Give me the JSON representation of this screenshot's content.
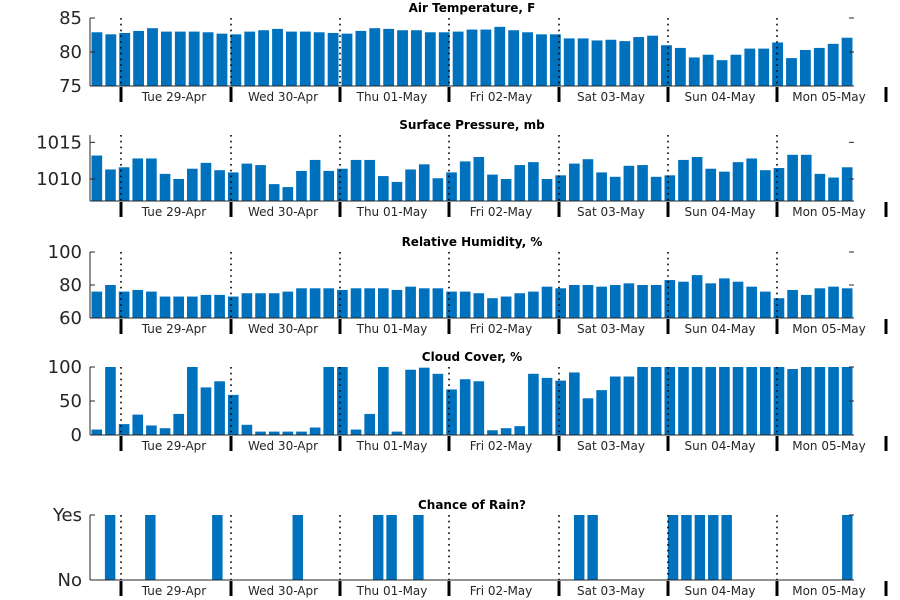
{
  "chart_data": [
    {
      "type": "bar",
      "title": "Air Temperature, F",
      "xlabel": "",
      "ylabel": "",
      "ylim": [
        75,
        85
      ],
      "yticks": [
        {
          "value": 75,
          "label": "75"
        },
        {
          "value": 80,
          "label": "80"
        },
        {
          "value": 85,
          "label": "85"
        }
      ],
      "day_labels": [
        "Tue 29-Apr",
        "Wed 30-Apr",
        "Thu 01-May",
        "Fri 02-May",
        "Sat 03-May",
        "Sun 04-May",
        "Mon 05-May"
      ],
      "values": [
        82.9,
        82.6,
        82.8,
        83.1,
        83.5,
        83.0,
        83.0,
        83.0,
        82.9,
        82.7,
        82.6,
        83.0,
        83.2,
        83.4,
        83.0,
        83.0,
        82.9,
        82.8,
        82.7,
        83.1,
        83.5,
        83.4,
        83.2,
        83.2,
        82.9,
        82.9,
        83.0,
        83.3,
        83.3,
        83.7,
        83.2,
        82.9,
        82.6,
        82.6,
        82.0,
        82.0,
        81.7,
        81.8,
        81.6,
        82.2,
        82.4,
        81.0,
        80.6,
        79.2,
        79.6,
        78.8,
        79.6,
        80.5,
        80.5,
        81.4,
        79.1,
        80.3,
        80.6,
        81.2,
        82.1
      ]
    },
    {
      "type": "bar",
      "title": "Surface Pressure, mb",
      "xlabel": "",
      "ylabel": "",
      "ylim": [
        1007,
        1016
      ],
      "yticks": [
        {
          "value": 1010,
          "label": "1010"
        },
        {
          "value": 1015,
          "label": "1015"
        }
      ],
      "day_labels": [
        "Tue 29-Apr",
        "Wed 30-Apr",
        "Thu 01-May",
        "Fri 02-May",
        "Sat 03-May",
        "Sun 04-May",
        "Mon 05-May"
      ],
      "values": [
        1013.2,
        1011.3,
        1011.6,
        1012.8,
        1012.8,
        1010.7,
        1010.0,
        1011.4,
        1012.2,
        1011.2,
        1010.9,
        1012.1,
        1011.9,
        1009.3,
        1008.9,
        1011.1,
        1012.6,
        1011.1,
        1011.4,
        1012.6,
        1012.6,
        1010.4,
        1009.6,
        1011.3,
        1012.0,
        1010.1,
        1010.9,
        1012.4,
        1013.0,
        1010.6,
        1010.0,
        1011.9,
        1012.3,
        1010.0,
        1010.5,
        1012.1,
        1012.7,
        1010.9,
        1010.3,
        1011.8,
        1011.9,
        1010.3,
        1010.5,
        1012.6,
        1013.0,
        1011.4,
        1011.0,
        1012.3,
        1012.8,
        1011.2,
        1011.5,
        1013.3,
        1013.3,
        1010.7,
        1010.2,
        1011.6
      ]
    },
    {
      "type": "bar",
      "title": "Relative Humidity, %",
      "xlabel": "",
      "ylabel": "",
      "ylim": [
        60,
        100
      ],
      "yticks": [
        {
          "value": 60,
          "label": "60"
        },
        {
          "value": 80,
          "label": "80"
        },
        {
          "value": 100,
          "label": "100"
        }
      ],
      "day_labels": [
        "Tue 29-Apr",
        "Wed 30-Apr",
        "Thu 01-May",
        "Fri 02-May",
        "Sat 03-May",
        "Sun 04-May",
        "Mon 05-May"
      ],
      "values": [
        76,
        80,
        76,
        77,
        76,
        73,
        73,
        73,
        74,
        74,
        73,
        75,
        75,
        75,
        76,
        78,
        78,
        78,
        77,
        78,
        78,
        78,
        77,
        79,
        78,
        78,
        76,
        76,
        75,
        72,
        73,
        75,
        76,
        79,
        78,
        80,
        80,
        79,
        80,
        81,
        80,
        80,
        83,
        82,
        86,
        81,
        84,
        82,
        79,
        76,
        72,
        77,
        74,
        78,
        79,
        78
      ]
    },
    {
      "type": "bar",
      "title": "Cloud Cover, %",
      "xlabel": "",
      "ylabel": "",
      "ylim": [
        0,
        100
      ],
      "yticks": [
        {
          "value": 0,
          "label": "0"
        },
        {
          "value": 50,
          "label": "50"
        },
        {
          "value": 100,
          "label": "100"
        }
      ],
      "day_labels": [
        "Tue 29-Apr",
        "Wed 30-Apr",
        "Thu 01-May",
        "Fri 02-May",
        "Sat 03-May",
        "Sun 04-May",
        "Mon 05-May"
      ],
      "values": [
        8,
        100,
        16,
        30,
        14,
        10,
        31,
        100,
        70,
        79,
        59,
        15,
        5,
        5,
        5,
        5,
        11,
        100,
        100,
        8,
        31,
        100,
        5,
        96,
        99,
        90,
        67,
        82,
        79,
        7,
        10,
        13,
        90,
        84,
        80,
        92,
        54,
        66,
        86,
        86,
        100,
        100,
        100,
        100,
        100,
        100,
        100,
        100,
        100,
        100,
        100,
        97,
        100,
        100,
        100,
        100
      ]
    },
    {
      "type": "bar",
      "title": "Chance of Rain?",
      "xlabel": "",
      "ylabel": "",
      "ylim": [
        0,
        1
      ],
      "yticks": [
        {
          "value": 0,
          "label": "No"
        },
        {
          "value": 1,
          "label": "Yes"
        }
      ],
      "day_labels": [
        "Tue 29-Apr",
        "Wed 30-Apr",
        "Thu 01-May",
        "Fri 02-May",
        "Sat 03-May",
        "Sun 04-May",
        "Mon 05-May"
      ],
      "values": [
        0,
        1,
        0,
        0,
        1,
        0,
        0,
        0,
        0,
        1,
        0,
        0,
        0,
        0,
        0,
        1,
        0,
        0,
        0,
        0,
        0,
        1,
        1,
        0,
        1,
        0,
        0,
        0,
        0,
        0,
        0,
        0,
        0,
        0,
        0,
        0,
        1,
        1,
        0,
        0,
        0,
        0,
        0,
        1,
        1,
        1,
        1,
        1,
        0,
        0,
        0,
        0,
        0,
        0,
        0,
        0,
        1
      ]
    }
  ],
  "colors": {
    "bar": "#0072bd",
    "axis": "#262626"
  }
}
